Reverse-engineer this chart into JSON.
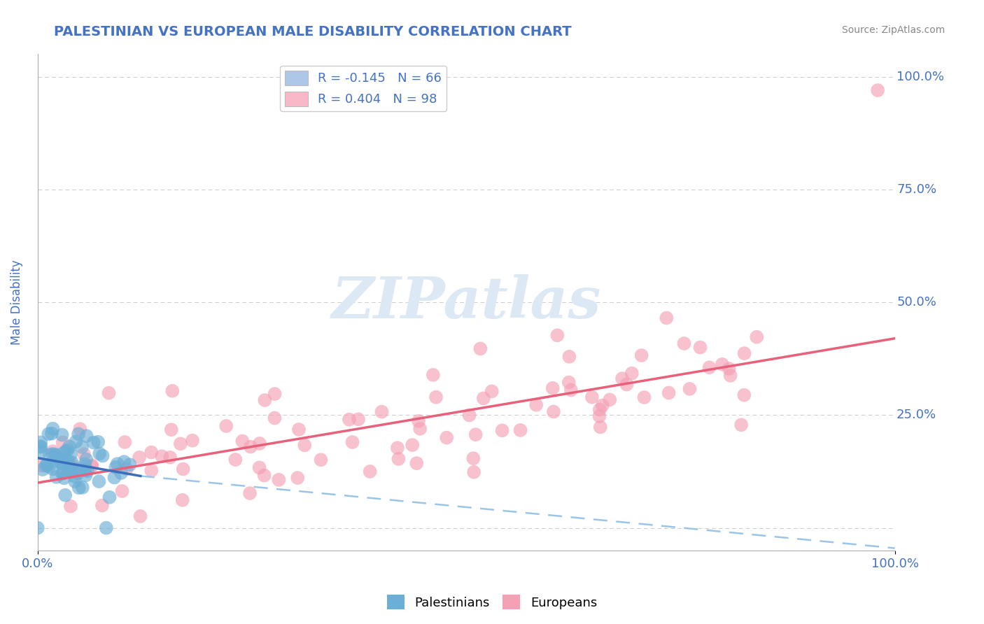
{
  "title": "PALESTINIAN VS EUROPEAN MALE DISABILITY CORRELATION CHART",
  "source": "Source: ZipAtlas.com",
  "ylabel": "Male Disability",
  "ytick_positions": [
    0.0,
    0.25,
    0.5,
    0.75,
    1.0
  ],
  "ytick_labels": [
    "",
    "25.0%",
    "50.0%",
    "75.0%",
    "100.0%"
  ],
  "xtick_positions": [
    0.0,
    1.0
  ],
  "xtick_labels": [
    "0.0%",
    "100.0%"
  ],
  "legend_blue_label": "R = -0.145   N = 66",
  "legend_pink_label": "R = 0.404   N = 98",
  "legend_blue_patch": "#aec6e8",
  "legend_pink_patch": "#f9b8c8",
  "blue_scatter_color": "#6baed6",
  "pink_scatter_color": "#f4a0b5",
  "trend_blue_solid_color": "#3a6fbd",
  "trend_blue_dash_color": "#9ac4e8",
  "trend_pink_color": "#e8607a",
  "title_color": "#4472c4",
  "source_color": "#888888",
  "axis_label_color": "#4472c4",
  "tick_color": "#4472c4",
  "watermark_color": "#dde8f5",
  "background_color": "#ffffff",
  "grid_color": "#cccccc",
  "pink_trend_x0": 0.0,
  "pink_trend_y0": 0.1,
  "pink_trend_x1": 1.0,
  "pink_trend_y1": 0.42,
  "blue_trend_solid_x0": 0.0,
  "blue_trend_solid_y0": 0.155,
  "blue_trend_solid_x1": 0.12,
  "blue_trend_solid_y1": 0.115,
  "blue_trend_dash_x0": 0.12,
  "blue_trend_dash_y0": 0.115,
  "blue_trend_dash_x1": 1.0,
  "blue_trend_dash_y1": -0.045,
  "xlim": [
    0.0,
    1.0
  ],
  "ylim": [
    -0.05,
    1.05
  ]
}
